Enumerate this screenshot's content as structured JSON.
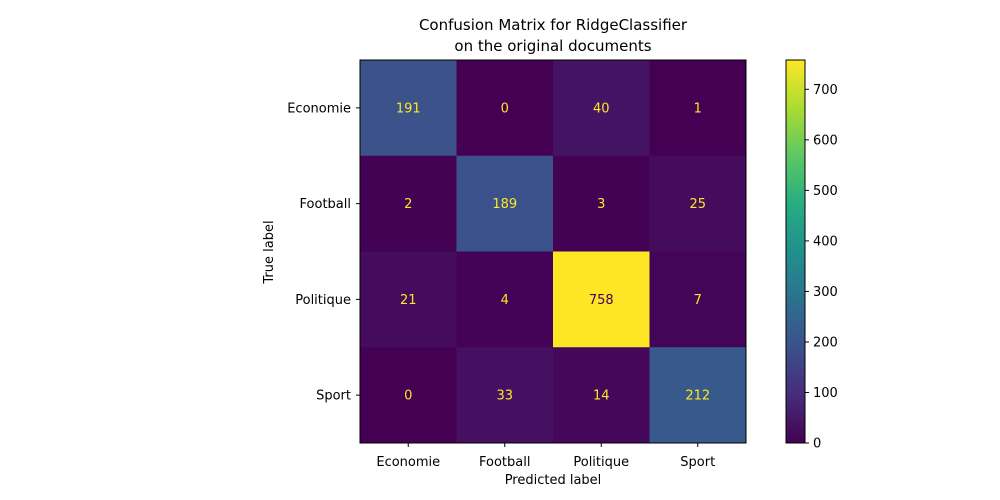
{
  "chart_data": {
    "type": "heatmap",
    "title_lines": [
      "Confusion Matrix for RidgeClassifier",
      "on the original documents"
    ],
    "xlabel": "Predicted label",
    "ylabel": "True label",
    "row_labels": [
      "Economie",
      "Football",
      "Politique",
      "Sport"
    ],
    "col_labels": [
      "Economie",
      "Football",
      "Politique",
      "Sport"
    ],
    "matrix": [
      [
        191,
        0,
        40,
        1
      ],
      [
        2,
        189,
        3,
        25
      ],
      [
        21,
        4,
        758,
        7
      ],
      [
        0,
        33,
        14,
        212
      ]
    ],
    "colormap": "viridis",
    "value_range": [
      0,
      758
    ],
    "colorbar_ticks": [
      0,
      100,
      200,
      300,
      400,
      500,
      600,
      700
    ],
    "cell_text_color_dark": "#fde725",
    "cell_text_color_light": "#440154"
  }
}
